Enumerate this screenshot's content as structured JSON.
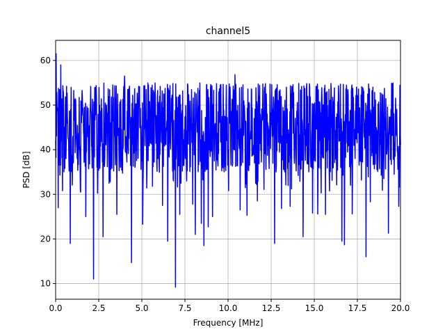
{
  "chart_data": {
    "type": "line",
    "title": "channel5",
    "xlabel": "Frequency [MHz]",
    "ylabel": "PSD [dB]",
    "xlim": [
      0,
      20
    ],
    "ylim": [
      6.5,
      64.5
    ],
    "grid": true,
    "legend": "none",
    "line_color": "#0000ff",
    "grid_color": "#b0b0b0",
    "x_ticks": [
      {
        "value": 0,
        "label": "0.0"
      },
      {
        "value": 2.5,
        "label": "2.5"
      },
      {
        "value": 5,
        "label": "5.0"
      },
      {
        "value": 7.5,
        "label": "7.5"
      },
      {
        "value": 10,
        "label": "10.0"
      },
      {
        "value": 12.5,
        "label": "12.5"
      },
      {
        "value": 15,
        "label": "15.0"
      },
      {
        "value": 17.5,
        "label": "17.5"
      },
      {
        "value": 20,
        "label": "20.0"
      }
    ],
    "y_ticks": [
      {
        "value": 10,
        "label": "10"
      },
      {
        "value": 20,
        "label": "20"
      },
      {
        "value": 30,
        "label": "30"
      },
      {
        "value": 40,
        "label": "40"
      },
      {
        "value": 50,
        "label": "50"
      },
      {
        "value": 60,
        "label": "60"
      }
    ],
    "series": [
      {
        "band_center": 45,
        "band_upper": 53,
        "band_lower": 38,
        "points_per_mhz": 60,
        "peaks": [
          {
            "x": 0.03,
            "y": 61.5
          },
          {
            "x": 0.3,
            "y": 59.0
          },
          {
            "x": 10.4,
            "y": 56.8
          },
          {
            "x": 4.0,
            "y": 56.5
          }
        ],
        "dips": [
          {
            "x": 0.15,
            "y": 27.0
          },
          {
            "x": 0.4,
            "y": 30.8
          },
          {
            "x": 0.85,
            "y": 19.0
          },
          {
            "x": 1.45,
            "y": 30.5
          },
          {
            "x": 1.75,
            "y": 25.0
          },
          {
            "x": 2.2,
            "y": 11.0
          },
          {
            "x": 2.75,
            "y": 20.5
          },
          {
            "x": 3.55,
            "y": 25.5
          },
          {
            "x": 4.4,
            "y": 14.7
          },
          {
            "x": 5.05,
            "y": 23.3
          },
          {
            "x": 6.2,
            "y": 27.5
          },
          {
            "x": 6.5,
            "y": 19.5
          },
          {
            "x": 6.95,
            "y": 9.2
          },
          {
            "x": 7.2,
            "y": 25.5
          },
          {
            "x": 7.95,
            "y": 27.8
          },
          {
            "x": 8.1,
            "y": 21.0
          },
          {
            "x": 8.45,
            "y": 23.5
          },
          {
            "x": 8.6,
            "y": 18.5
          },
          {
            "x": 8.85,
            "y": 22.7
          },
          {
            "x": 9.1,
            "y": 25.0
          },
          {
            "x": 10.7,
            "y": 26.5
          },
          {
            "x": 11.1,
            "y": 25.3
          },
          {
            "x": 11.7,
            "y": 28.5
          },
          {
            "x": 12.7,
            "y": 19.0
          },
          {
            "x": 13.1,
            "y": 26.8
          },
          {
            "x": 13.6,
            "y": 27.3
          },
          {
            "x": 14.35,
            "y": 20.5
          },
          {
            "x": 14.9,
            "y": 25.8
          },
          {
            "x": 15.2,
            "y": 25.6
          },
          {
            "x": 15.65,
            "y": 25.5
          },
          {
            "x": 16.6,
            "y": 19.5
          },
          {
            "x": 16.75,
            "y": 18.7
          },
          {
            "x": 17.2,
            "y": 25.6
          },
          {
            "x": 18.0,
            "y": 16.0
          },
          {
            "x": 18.25,
            "y": 28.3
          },
          {
            "x": 19.3,
            "y": 21.3
          },
          {
            "x": 19.9,
            "y": 27.3
          }
        ]
      }
    ]
  }
}
